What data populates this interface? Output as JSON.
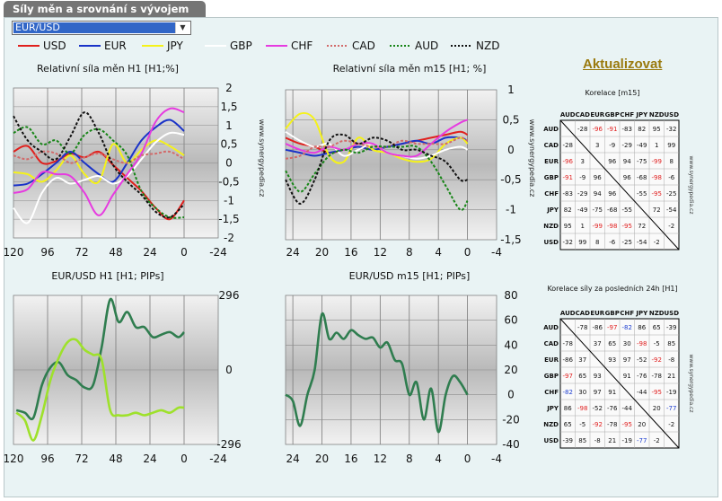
{
  "tab": {
    "title": "Síly měn a srovnání s vývojem cen"
  },
  "pair_select": {
    "value": "EUR/USD"
  },
  "legend": [
    {
      "name": "USD",
      "color": "#e0201d",
      "dash": "solid"
    },
    {
      "name": "EUR",
      "color": "#1a33c8",
      "dash": "solid"
    },
    {
      "name": "JPY",
      "color": "#f5f21a",
      "dash": "solid"
    },
    {
      "name": "GBP",
      "color": "#ffffff",
      "dash": "solid"
    },
    {
      "name": "CHF",
      "color": "#e63be0",
      "dash": "solid"
    },
    {
      "name": "CAD",
      "color": "#d26a6a",
      "dash": "dotted"
    },
    {
      "name": "AUD",
      "color": "#168516",
      "dash": "dotted"
    },
    {
      "name": "NZD",
      "color": "#111111",
      "dash": "dotted"
    }
  ],
  "update_button": {
    "label": "Aktualizovat"
  },
  "watermark": "www.synergypedia.cz",
  "matrix_headers": [
    "AUD",
    "CAD",
    "EUR",
    "GBP",
    "CHF",
    "JPY",
    "NZD",
    "USD"
  ],
  "correlation_m15": {
    "title": "Korelace [m15]",
    "rows": [
      [
        null,
        "-28",
        "-96",
        "-91",
        "-83",
        "82",
        "95",
        "-32"
      ],
      [
        "-28",
        null,
        "3",
        "-9",
        "-29",
        "-49",
        "1",
        "99"
      ],
      [
        "-96",
        "3",
        null,
        "96",
        "94",
        "-75",
        "-99",
        "8"
      ],
      [
        "-91",
        "-9",
        "96",
        null,
        "96",
        "-68",
        "-98",
        "-6"
      ],
      [
        "-83",
        "-29",
        "94",
        "96",
        null,
        "-55",
        "-95",
        "-25"
      ],
      [
        "82",
        "-49",
        "-75",
        "-68",
        "-55",
        null,
        "72",
        "-54"
      ],
      [
        "95",
        "1",
        "-99",
        "-98",
        "-95",
        "72",
        null,
        "-2"
      ],
      [
        "-32",
        "99",
        "8",
        "-6",
        "-25",
        "-54",
        "-2",
        null
      ]
    ]
  },
  "correlation_24h": {
    "title": "Korelace síly za posledních 24h [H1]",
    "rows": [
      [
        null,
        "-78",
        "-86",
        "-97",
        "-82",
        "86",
        "65",
        "-39"
      ],
      [
        "-78",
        null,
        "37",
        "65",
        "30",
        "-98",
        "-5",
        "85"
      ],
      [
        "-86",
        "37",
        null,
        "93",
        "97",
        "-52",
        "-92",
        "-8"
      ],
      [
        "-97",
        "65",
        "93",
        null,
        "91",
        "-76",
        "-78",
        "21"
      ],
      [
        "-82",
        "30",
        "97",
        "91",
        null,
        "-44",
        "-95",
        "-19"
      ],
      [
        "86",
        "-98",
        "-52",
        "-76",
        "-44",
        null,
        "20",
        "-77"
      ],
      [
        "65",
        "-5",
        "-92",
        "-78",
        "-95",
        "20",
        null,
        "-2"
      ],
      [
        "-39",
        "85",
        "-8",
        "21",
        "-19",
        "-77",
        "-2",
        null
      ]
    ]
  },
  "chart_data": [
    {
      "type": "line",
      "title": "Relativní síla měn H1 [H1;%]",
      "x_ticks": [
        "120",
        "96",
        "72",
        "48",
        "24",
        "0",
        "-24"
      ],
      "y_ticks": [
        "2",
        "1,5",
        "1",
        "0,5",
        "0",
        "-0,5",
        "-1",
        "-1,5",
        "-2"
      ],
      "xlim": [
        120,
        -24
      ],
      "ylim": [
        -2,
        2
      ],
      "x": [
        120,
        110,
        100,
        90,
        80,
        70,
        60,
        50,
        40,
        30,
        20,
        10,
        0
      ],
      "series": [
        {
          "name": "USD",
          "values": [
            0.3,
            0.45,
            0.0,
            0.05,
            0.25,
            0.15,
            0.3,
            -0.05,
            -0.4,
            -0.75,
            -1.2,
            -1.5,
            -1.0
          ]
        },
        {
          "name": "EUR",
          "values": [
            -0.6,
            -0.55,
            -0.3,
            0.0,
            0.3,
            0.0,
            -0.3,
            -0.5,
            0.0,
            0.6,
            0.95,
            1.15,
            0.85
          ]
        },
        {
          "name": "JPY",
          "values": [
            -0.25,
            -0.3,
            -0.5,
            -0.2,
            0.2,
            -0.3,
            -0.5,
            0.5,
            0.0,
            0.35,
            0.6,
            0.45,
            0.2
          ]
        },
        {
          "name": "GBP",
          "values": [
            -1.2,
            -1.6,
            -0.8,
            -0.4,
            -0.55,
            -0.45,
            -0.35,
            -0.55,
            -0.35,
            0.1,
            0.55,
            0.8,
            0.75
          ]
        },
        {
          "name": "CHF",
          "values": [
            -0.8,
            -0.7,
            -0.25,
            -0.3,
            -0.35,
            -0.8,
            -1.4,
            -0.85,
            -0.3,
            0.25,
            1.1,
            1.45,
            1.35
          ]
        },
        {
          "name": "CAD",
          "values": [
            0.2,
            0.1,
            0.3,
            0.25,
            0.0,
            0.15,
            0.25,
            0.1,
            0.0,
            0.2,
            0.25,
            0.3,
            0.1
          ]
        },
        {
          "name": "AUD",
          "values": [
            0.8,
            0.95,
            0.5,
            0.6,
            0.25,
            0.75,
            0.9,
            0.6,
            0.2,
            -0.75,
            -1.2,
            -1.45,
            -1.45
          ]
        },
        {
          "name": "NZD",
          "values": [
            1.25,
            0.6,
            0.3,
            0.1,
            0.7,
            1.35,
            0.8,
            -0.05,
            -0.5,
            -0.85,
            -1.3,
            -1.45,
            -1.1
          ]
        }
      ]
    },
    {
      "type": "line",
      "title": "Relativní síla měn m15 [H1; %]",
      "x_ticks": [
        "24",
        "20",
        "16",
        "12",
        "8",
        "4",
        "0",
        "-4"
      ],
      "y_ticks": [
        "1",
        "0,5",
        "0",
        "-0,5",
        "-1",
        "-1,5"
      ],
      "xlim": [
        25,
        -4
      ],
      "ylim": [
        -1.5,
        1
      ],
      "x": [
        25,
        23,
        21,
        19,
        17,
        15,
        13,
        11,
        9,
        7,
        5,
        3,
        1,
        0
      ],
      "series": [
        {
          "name": "USD",
          "values": [
            0.2,
            0.1,
            0.05,
            -0.05,
            0.0,
            0.05,
            0.0,
            0.05,
            0.1,
            0.15,
            0.2,
            0.25,
            0.3,
            0.25
          ]
        },
        {
          "name": "EUR",
          "values": [
            0.0,
            -0.05,
            -0.1,
            -0.05,
            0.0,
            0.05,
            0.0,
            0.05,
            0.1,
            0.15,
            0.1,
            0.2,
            0.2,
            0.15
          ]
        },
        {
          "name": "JPY",
          "values": [
            0.35,
            0.6,
            0.5,
            -0.1,
            -0.2,
            0.2,
            0.0,
            -0.05,
            -0.15,
            -0.2,
            -0.15,
            0.1,
            0.2,
            0.1
          ]
        },
        {
          "name": "GBP",
          "values": [
            0.3,
            0.15,
            0.05,
            0.1,
            -0.1,
            0.0,
            0.1,
            -0.05,
            -0.1,
            -0.15,
            -0.1,
            0.0,
            0.05,
            0.0
          ]
        },
        {
          "name": "CHF",
          "values": [
            0.1,
            0.0,
            -0.05,
            0.05,
            0.0,
            0.1,
            0.1,
            -0.05,
            -0.1,
            -0.1,
            0.1,
            0.3,
            0.45,
            0.5
          ]
        },
        {
          "name": "CAD",
          "values": [
            -0.15,
            -0.1,
            0.05,
            0.05,
            0.15,
            0.1,
            0.05,
            0.05,
            0.15,
            0.1,
            0.1,
            0.1,
            0.2,
            0.15
          ]
        },
        {
          "name": "AUD",
          "values": [
            -0.35,
            -0.7,
            -0.4,
            -0.1,
            0.0,
            -0.05,
            0.05,
            0.05,
            0.05,
            0.05,
            -0.2,
            -0.6,
            -1.0,
            -0.85
          ]
        },
        {
          "name": "NZD",
          "values": [
            -0.5,
            -0.9,
            -0.5,
            0.15,
            0.25,
            0.1,
            0.2,
            0.15,
            0.0,
            0.0,
            -0.1,
            -0.2,
            -0.5,
            -0.5
          ]
        }
      ]
    },
    {
      "type": "line",
      "title": "EUR/USD H1 [H1; PIPs]",
      "x_ticks": [
        "120",
        "96",
        "72",
        "48",
        "24",
        "0",
        "-24"
      ],
      "y_ticks": [
        "296",
        "0",
        "-296"
      ],
      "xlim": [
        120,
        -24
      ],
      "ylim": [
        -296,
        296
      ],
      "x": [
        118,
        112,
        106,
        100,
        94,
        88,
        82,
        76,
        70,
        64,
        58,
        52,
        46,
        40,
        34,
        28,
        22,
        16,
        10,
        4,
        0
      ],
      "series": [
        {
          "name": "EUR/USD",
          "color": "#2f7d4f",
          "values": [
            -160,
            -170,
            -190,
            -60,
            10,
            30,
            -20,
            -40,
            -70,
            -60,
            90,
            280,
            190,
            230,
            170,
            170,
            130,
            140,
            150,
            130,
            150
          ]
        },
        {
          "name": "EUR/USD-alt",
          "color": "#9ee12b",
          "values": [
            -170,
            -200,
            -280,
            -180,
            -40,
            50,
            110,
            120,
            80,
            60,
            40,
            -160,
            -180,
            -180,
            -170,
            -180,
            -170,
            -160,
            -170,
            -150,
            -150
          ]
        }
      ]
    },
    {
      "type": "line",
      "title": "EUR/USD m15 [H1; PIPs]",
      "x_ticks": [
        "24",
        "20",
        "16",
        "12",
        "8",
        "4",
        "0",
        "-4"
      ],
      "y_ticks": [
        "80",
        "60",
        "40",
        "20",
        "0",
        "-20",
        "-40"
      ],
      "xlim": [
        25,
        -4
      ],
      "ylim": [
        -40,
        80
      ],
      "x": [
        25,
        24,
        23,
        22,
        21,
        20,
        19,
        18,
        17,
        16,
        15,
        14,
        13,
        12,
        11,
        10,
        9,
        8,
        7,
        6,
        5,
        4,
        3,
        2,
        1,
        0
      ],
      "series": [
        {
          "name": "EUR/USD",
          "color": "#2f7d4f",
          "values": [
            0,
            -5,
            -25,
            0,
            20,
            65,
            45,
            50,
            45,
            52,
            48,
            45,
            46,
            38,
            42,
            28,
            25,
            0,
            10,
            -20,
            5,
            -30,
            0,
            15,
            10,
            0
          ]
        }
      ]
    }
  ]
}
